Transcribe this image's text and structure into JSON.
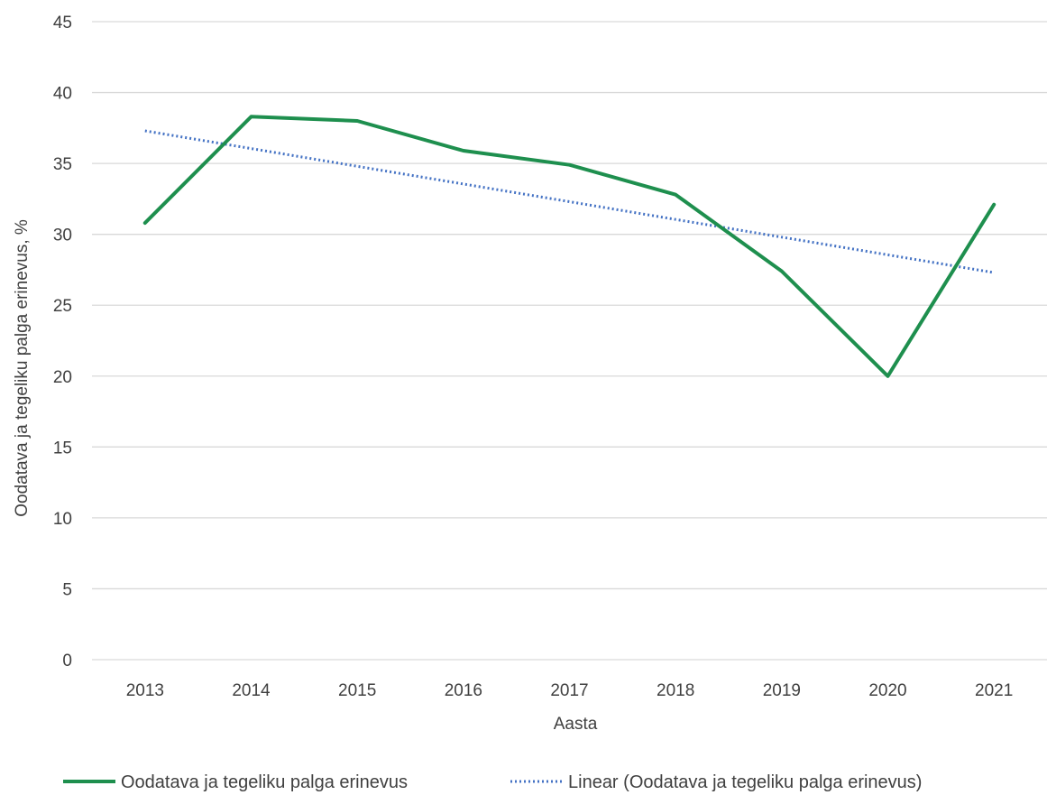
{
  "chart_data": {
    "type": "line",
    "title": "",
    "xlabel": "Aasta",
    "ylabel": "Oodatava ja tegeliku palga erinevus, %",
    "categories": [
      "2013",
      "2014",
      "2015",
      "2016",
      "2017",
      "2018",
      "2019",
      "2020",
      "2021"
    ],
    "y_ticks": [
      "0",
      "5",
      "10",
      "15",
      "20",
      "25",
      "30",
      "35",
      "40",
      "45"
    ],
    "ylim": [
      0,
      45
    ],
    "grid": true,
    "legend_position": "bottom",
    "series": [
      {
        "name": "Oodatava ja tegeliku palga erinevus",
        "values": [
          30.8,
          38.3,
          38.0,
          35.9,
          34.9,
          32.8,
          27.4,
          20.0,
          32.1
        ],
        "color": "#1e8f4e",
        "style": "solid"
      },
      {
        "name": "Linear (Oodatava ja tegeliku palga erinevus)",
        "values": [
          37.3,
          36.05,
          34.8,
          33.55,
          32.3,
          31.05,
          29.8,
          28.55,
          27.3
        ],
        "color": "#4472c4",
        "style": "dotted"
      }
    ]
  }
}
